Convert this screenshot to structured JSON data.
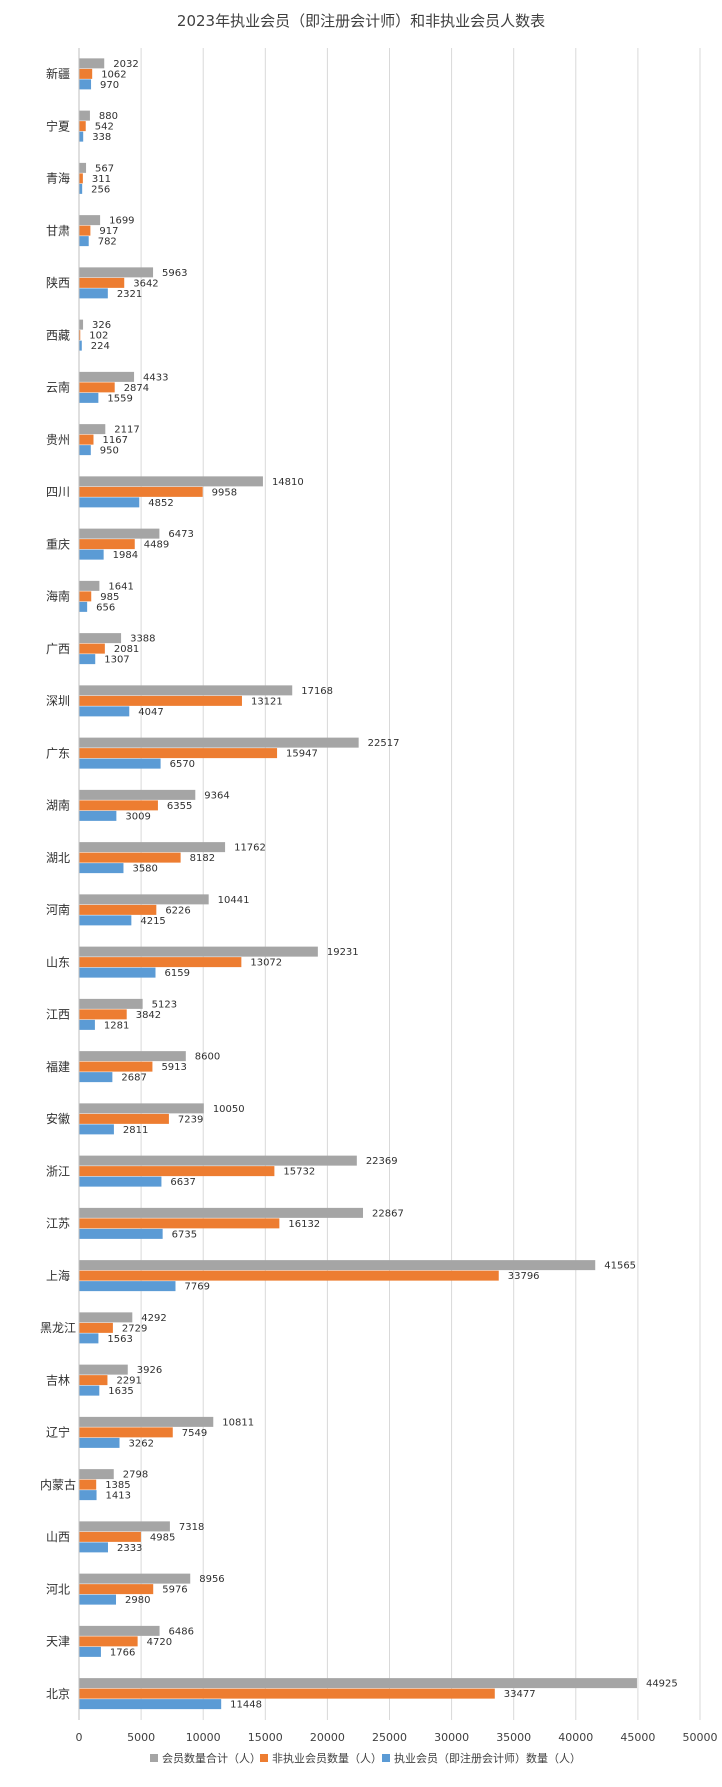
{
  "chart_data": {
    "type": "bar",
    "orientation": "horizontal",
    "title": "2023年执业会员（即注册会计师）和非执业会员人数表",
    "categories": [
      "新疆",
      "宁夏",
      "青海",
      "甘肃",
      "陕西",
      "西藏",
      "云南",
      "贵州",
      "四川",
      "重庆",
      "海南",
      "广西",
      "深圳",
      "广东",
      "湖南",
      "湖北",
      "河南",
      "山东",
      "江西",
      "福建",
      "安徽",
      "浙江",
      "江苏",
      "上海",
      "黑龙江",
      "吉林",
      "辽宁",
      "内蒙古",
      "山西",
      "河北",
      "天津",
      "北京"
    ],
    "series": [
      {
        "name": "会员数量合计（人）",
        "color": "#a5a5a5",
        "values": [
          2032,
          880,
          567,
          1699,
          5963,
          326,
          4433,
          2117,
          14810,
          6473,
          1641,
          3388,
          17168,
          22517,
          9364,
          11762,
          10441,
          19231,
          5123,
          8600,
          10050,
          22369,
          22867,
          41565,
          4292,
          3926,
          10811,
          2798,
          7318,
          8956,
          6486,
          44925
        ]
      },
      {
        "name": "非执业会员数量（人）",
        "color": "#ed7d31",
        "values": [
          1062,
          542,
          311,
          917,
          3642,
          102,
          2874,
          1167,
          9958,
          4489,
          985,
          2081,
          13121,
          15947,
          6355,
          8182,
          6226,
          13072,
          3842,
          5913,
          7239,
          15732,
          16132,
          33796,
          2729,
          2291,
          7549,
          1385,
          4985,
          5976,
          4720,
          33477
        ]
      },
      {
        "name": "执业会员（即注册会计师）数量（人）",
        "color": "#5b9bd5",
        "values": [
          970,
          338,
          256,
          782,
          2321,
          224,
          1559,
          950,
          4852,
          1984,
          656,
          1307,
          4047,
          6570,
          3009,
          3580,
          4215,
          6159,
          1281,
          2687,
          2811,
          6637,
          6735,
          7769,
          1563,
          1635,
          3262,
          1413,
          2333,
          2980,
          1766,
          11448
        ]
      }
    ],
    "xlim": [
      0,
      50000
    ],
    "xticks": [
      0,
      5000,
      10000,
      15000,
      20000,
      25000,
      30000,
      35000,
      40000,
      45000,
      50000
    ],
    "grid": "vertical",
    "legend": "bottom"
  }
}
